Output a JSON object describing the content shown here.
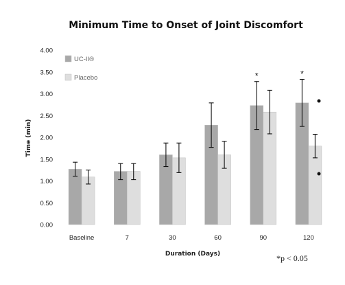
{
  "chart_data": {
    "type": "bar",
    "title": "Minimum Time to Onset of Joint Discomfort",
    "xlabel": "Duration (Days)",
    "ylabel": "Time (min)",
    "ylim": [
      0,
      4
    ],
    "yticks": [
      "0.00",
      "0.50",
      "1.00",
      "1.50",
      "2.00",
      "2.50",
      "3.00",
      "3.50",
      "4.00"
    ],
    "categories": [
      "Baseline",
      "7",
      "30",
      "60",
      "90",
      "120"
    ],
    "series": [
      {
        "name": "UC-II®",
        "color": "#a8a8a8",
        "values": [
          1.27,
          1.22,
          1.6,
          2.28,
          2.73,
          2.79
        ],
        "err_low": [
          1.11,
          1.03,
          1.33,
          1.77,
          2.18,
          2.25
        ],
        "err_high": [
          1.43,
          1.4,
          1.87,
          2.79,
          3.28,
          3.33
        ]
      },
      {
        "name": "Placebo",
        "color": "#dedede",
        "values": [
          1.09,
          1.22,
          1.53,
          1.6,
          2.58,
          1.8
        ],
        "err_low": [
          0.93,
          1.03,
          1.19,
          1.29,
          2.08,
          1.53
        ],
        "err_high": [
          1.25,
          1.4,
          1.87,
          1.91,
          3.08,
          2.07
        ]
      }
    ],
    "significance": [
      {
        "category": "90",
        "series": "UC-II®",
        "mark": "*"
      },
      {
        "category": "120",
        "series": "UC-II®",
        "mark": "*"
      }
    ],
    "grid": false,
    "legend_position": "top-left",
    "footnote": "*p < 0.05"
  }
}
